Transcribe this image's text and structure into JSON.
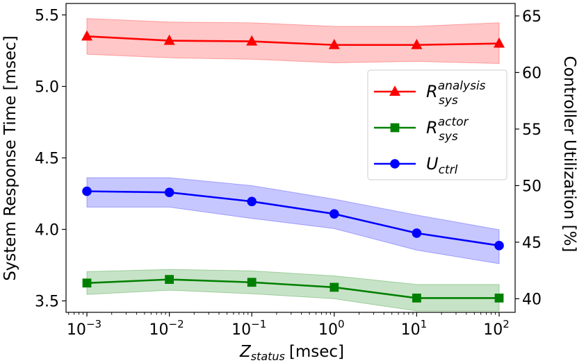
{
  "chart_data": {
    "type": "line",
    "x": [
      0.001,
      0.01,
      0.1,
      1,
      10,
      100
    ],
    "x_scale": "log",
    "x_ticks": [
      {
        "base": "10",
        "exp": "−3"
      },
      {
        "base": "10",
        "exp": "−2"
      },
      {
        "base": "10",
        "exp": "−1"
      },
      {
        "base": "10",
        "exp": "0"
      },
      {
        "base": "10",
        "exp": "1"
      },
      {
        "base": "10",
        "exp": "2"
      }
    ],
    "xlabel": {
      "main": "Z",
      "sub": "status",
      "unit": "[msec]"
    },
    "ylabel_left": "System Response Time [msec]",
    "ylabel_right": "Controller Utilization [%]",
    "ylim_left": [
      3.42,
      5.58
    ],
    "ylim_right": [
      38.8,
      66.1
    ],
    "yticks_left": [
      "3.5",
      "4.0",
      "4.5",
      "5.0",
      "5.5"
    ],
    "yticks_right": [
      "40",
      "45",
      "50",
      "55",
      "60",
      "65"
    ],
    "legend_position": "center-right",
    "grid": false,
    "series": [
      {
        "name": {
          "main": "R",
          "sub": "sys",
          "sup": "analysis"
        },
        "axis": "left",
        "color": "#ff0000",
        "marker": "triangle",
        "values": [
          5.35,
          5.32,
          5.315,
          5.29,
          5.29,
          5.3
        ],
        "band_upper": [
          5.475,
          5.45,
          5.445,
          5.42,
          5.42,
          5.445
        ],
        "band_lower": [
          5.225,
          5.2,
          5.19,
          5.165,
          5.175,
          5.16
        ]
      },
      {
        "name": {
          "main": "R",
          "sub": "sys",
          "sup": "actor"
        },
        "axis": "left",
        "color": "#008000",
        "marker": "square",
        "values": [
          3.625,
          3.65,
          3.63,
          3.595,
          3.52,
          3.52
        ],
        "band_upper": [
          3.705,
          3.72,
          3.71,
          3.675,
          3.615,
          3.615
        ],
        "band_lower": [
          3.545,
          3.575,
          3.55,
          3.515,
          3.43,
          3.43
        ]
      },
      {
        "name": {
          "main": "U",
          "sub": "ctrl",
          "sup": ""
        },
        "axis": "right",
        "color": "#0000ff",
        "marker": "circle",
        "values": [
          49.5,
          49.4,
          48.6,
          47.5,
          45.8,
          44.7
        ],
        "band_upper": [
          50.7,
          50.7,
          50.0,
          48.8,
          47.4,
          46.1
        ],
        "band_lower": [
          48.1,
          48.1,
          47.1,
          46.2,
          44.3,
          43.1
        ]
      }
    ]
  }
}
